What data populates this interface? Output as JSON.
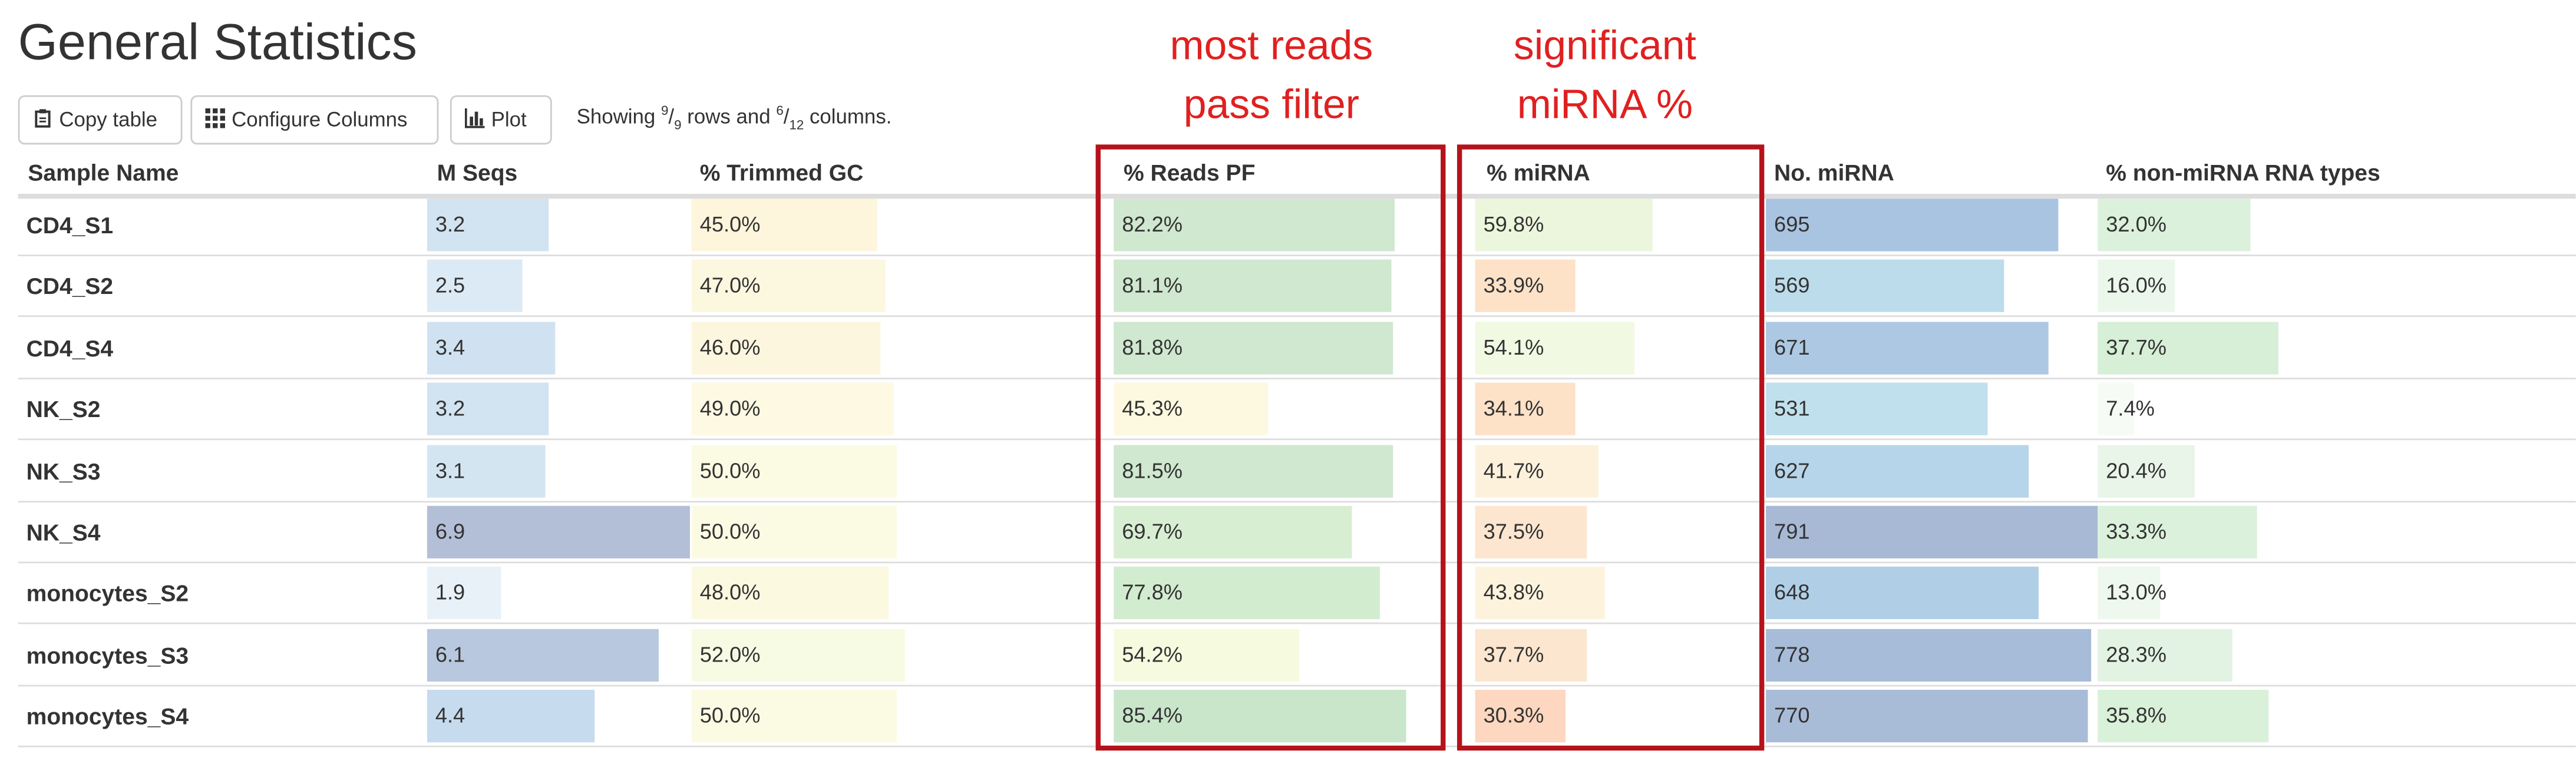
{
  "title": "General Statistics",
  "buttons": {
    "copy_table": "Copy table",
    "configure_columns": "Configure Columns",
    "plot": "Plot"
  },
  "status": {
    "prefix": "Showing ",
    "rows_shown": "9",
    "rows_total": "9",
    "middle": " rows and ",
    "cols_shown": "6",
    "cols_total": "12",
    "suffix": " columns."
  },
  "columns": {
    "sample": "Sample Name",
    "mseqs": "M Seqs",
    "gc": "% Trimmed GC",
    "pf": "% Reads PF",
    "mirna": "% miRNA",
    "nmirna": "No. miRNA",
    "nonmirna": "% non-miRNA RNA types"
  },
  "annotations": {
    "pf_line1": "most reads",
    "pf_line2": "pass filter",
    "mirna_line1": "significant",
    "mirna_line2": "miRNA %"
  },
  "rows": [
    {
      "name": "CD4_S1",
      "mseqs": "3.2",
      "gc": "45.0%",
      "pf": "82.2%",
      "mirna": "59.8%",
      "nmirna": "695",
      "nonmirna": "32.0%"
    },
    {
      "name": "CD4_S2",
      "mseqs": "2.5",
      "gc": "47.0%",
      "pf": "81.1%",
      "mirna": "33.9%",
      "nmirna": "569",
      "nonmirna": "16.0%"
    },
    {
      "name": "CD4_S4",
      "mseqs": "3.4",
      "gc": "46.0%",
      "pf": "81.8%",
      "mirna": "54.1%",
      "nmirna": "671",
      "nonmirna": "37.7%"
    },
    {
      "name": "NK_S2",
      "mseqs": "3.2",
      "gc": "49.0%",
      "pf": "45.3%",
      "mirna": "34.1%",
      "nmirna": "531",
      "nonmirna": "7.4%"
    },
    {
      "name": "NK_S3",
      "mseqs": "3.1",
      "gc": "50.0%",
      "pf": "81.5%",
      "mirna": "41.7%",
      "nmirna": "627",
      "nonmirna": "20.4%"
    },
    {
      "name": "NK_S4",
      "mseqs": "6.9",
      "gc": "50.0%",
      "pf": "69.7%",
      "mirna": "37.5%",
      "nmirna": "791",
      "nonmirna": "33.3%"
    },
    {
      "name": "monocytes_S2",
      "mseqs": "1.9",
      "gc": "48.0%",
      "pf": "77.8%",
      "mirna": "43.8%",
      "nmirna": "648",
      "nonmirna": "13.0%"
    },
    {
      "name": "monocytes_S3",
      "mseqs": "6.1",
      "gc": "52.0%",
      "pf": "54.2%",
      "mirna": "37.7%",
      "nmirna": "778",
      "nonmirna": "28.3%"
    },
    {
      "name": "monocytes_S4",
      "mseqs": "4.4",
      "gc": "50.0%",
      "pf": "85.4%",
      "mirna": "30.3%",
      "nmirna": "770",
      "nonmirna": "35.8%"
    }
  ],
  "bar_fill": [
    {
      "mseqs": 0.46,
      "gc": 0.45,
      "pf": 0.822,
      "mirna": 0.598,
      "nmirna": 0.88,
      "nonmirna": 0.32
    },
    {
      "mseqs": 0.36,
      "gc": 0.47,
      "pf": 0.811,
      "mirna": 0.339,
      "nmirna": 0.72,
      "nonmirna": 0.16
    },
    {
      "mseqs": 0.49,
      "gc": 0.46,
      "pf": 0.818,
      "mirna": 0.541,
      "nmirna": 0.85,
      "nonmirna": 0.377
    },
    {
      "mseqs": 0.46,
      "gc": 0.49,
      "pf": 0.453,
      "mirna": 0.341,
      "nmirna": 0.67,
      "nonmirna": 0.074
    },
    {
      "mseqs": 0.45,
      "gc": 0.5,
      "pf": 0.815,
      "mirna": 0.417,
      "nmirna": 0.79,
      "nonmirna": 0.204
    },
    {
      "mseqs": 1.0,
      "gc": 0.5,
      "pf": 0.697,
      "mirna": 0.375,
      "nmirna": 1.0,
      "nonmirna": 0.333
    },
    {
      "mseqs": 0.28,
      "gc": 0.48,
      "pf": 0.778,
      "mirna": 0.438,
      "nmirna": 0.82,
      "nonmirna": 0.13
    },
    {
      "mseqs": 0.88,
      "gc": 0.52,
      "pf": 0.542,
      "mirna": 0.377,
      "nmirna": 0.98,
      "nonmirna": 0.283
    },
    {
      "mseqs": 0.64,
      "gc": 0.5,
      "pf": 0.854,
      "mirna": 0.303,
      "nmirna": 0.97,
      "nonmirna": 0.358
    }
  ],
  "bar_colors": [
    {
      "mseqs": "#d2e3f1",
      "gc": "#fdf5dc",
      "pf": "#cfe8cf",
      "mirna": "#ecf6dc",
      "nmirna": "#a9c4e0",
      "nonmirna": "#dcf1dc"
    },
    {
      "mseqs": "#dceaf5",
      "gc": "#fcf7df",
      "pf": "#cfe8cf",
      "mirna": "#fde2c8",
      "nmirna": "#bcdcec",
      "nonmirna": "#ecf7ec"
    },
    {
      "mseqs": "#d0e2f1",
      "gc": "#fdf6de",
      "pf": "#cfe8cf",
      "mirna": "#f2f9e2",
      "nmirna": "#adc8e2",
      "nonmirna": "#d6efd6"
    },
    {
      "mseqs": "#d2e3f1",
      "gc": "#fdf9e2",
      "pf": "#fdf9e0",
      "mirna": "#fde2c8",
      "nmirna": "#c1e0ee",
      "nonmirna": "#f6fbf6"
    },
    {
      "mseqs": "#d4e5f2",
      "gc": "#fbfbe4",
      "pf": "#cfe8cf",
      "mirna": "#fdf1dc",
      "nmirna": "#b6d5ea",
      "nonmirna": "#e8f5e8"
    },
    {
      "mseqs": "#b3bfd7",
      "gc": "#fbfbe4",
      "pf": "#d8eed3",
      "mirna": "#fde6cf",
      "nmirna": "#a8b9d6",
      "nonmirna": "#dcf1dc"
    },
    {
      "mseqs": "#e8f1f8",
      "gc": "#fcf9e1",
      "pf": "#d2eccf",
      "mirna": "#fdf3dd",
      "nmirna": "#b0cfe6",
      "nonmirna": "#eef8ee"
    },
    {
      "mseqs": "#b8c8de",
      "gc": "#f8fbe4",
      "pf": "#f6fadf",
      "mirna": "#fde6cf",
      "nmirna": "#a7bcd8",
      "nonmirna": "#e3f3e3"
    },
    {
      "mseqs": "#c6dbee",
      "gc": "#fbfbe4",
      "pf": "#c9e6cb",
      "mirna": "#fdd7bf",
      "nmirna": "#a8bcd8",
      "nonmirna": "#d9f0d9"
    }
  ],
  "colors": {
    "annotation_text": "#e02020",
    "annotation_box": "#b5121b"
  },
  "icons": {
    "copy": "clipboard-icon",
    "configure": "grid-icon",
    "plot": "bar-chart-icon"
  }
}
